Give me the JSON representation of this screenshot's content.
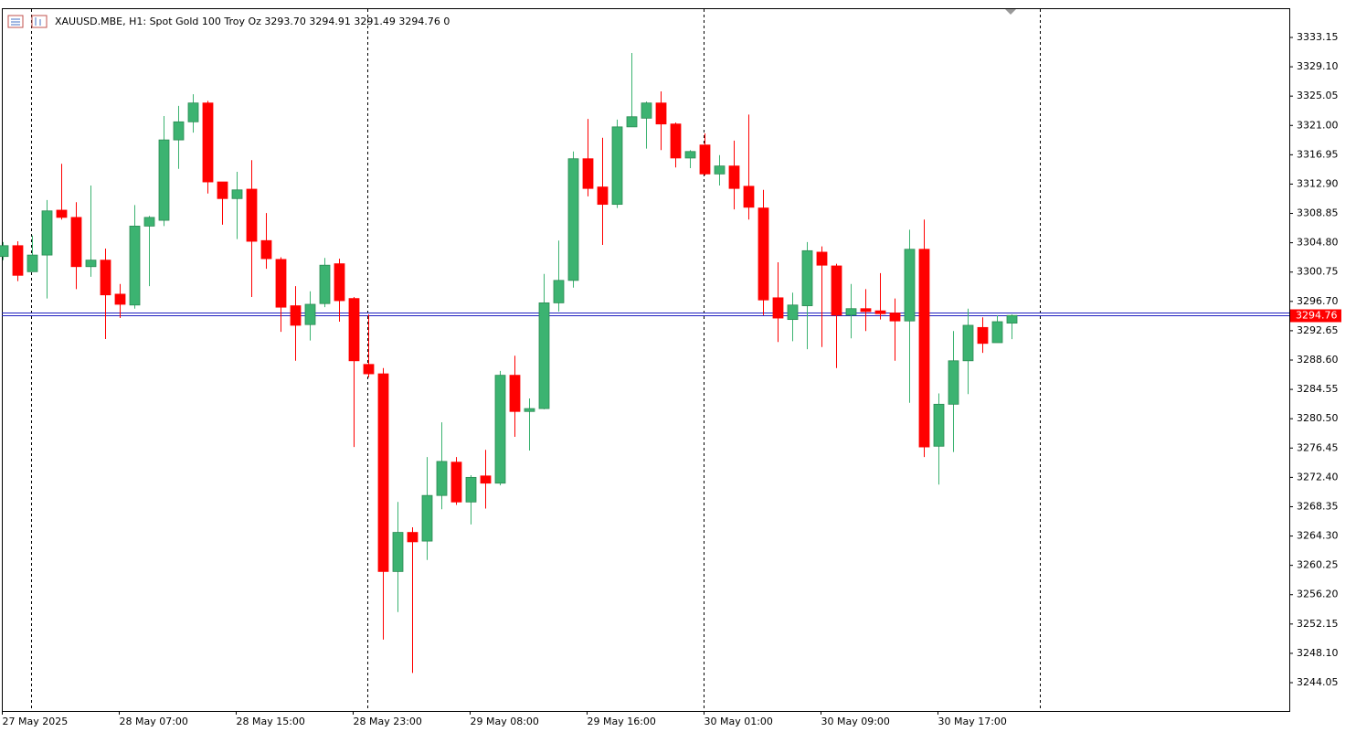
{
  "chart_data": {
    "type": "candlestick",
    "title": "XAUUSD.MBE, H1:  Spot Gold 100 Troy Oz  3293.70 3294.91 3291.49 3294.76  0",
    "categories": [
      "27 May 2025",
      null,
      null,
      null,
      null,
      null,
      null,
      null,
      "28 May 07:00",
      null,
      null,
      null,
      null,
      null,
      null,
      null,
      "28 May 15:00",
      null,
      null,
      null,
      null,
      null,
      null,
      null,
      "28 May 23:00",
      null,
      null,
      null,
      null,
      null,
      null,
      null,
      "29 May 08:00",
      null,
      null,
      null,
      null,
      null,
      null,
      null,
      "29 May 16:00",
      null,
      null,
      null,
      null,
      null,
      null,
      null,
      "30 May 01:00",
      null,
      null,
      null,
      null,
      null,
      null,
      null,
      "30 May 09:00",
      null,
      null,
      null,
      null,
      null,
      null,
      null,
      "30 May 17:00",
      null,
      null,
      null,
      null,
      null
    ],
    "open": [
      3302.9,
      3304.4,
      3300.8,
      3303.1,
      3309.3,
      3308.3,
      3301.5,
      3302.4,
      3297.7,
      3296.2,
      3307.1,
      3307.9,
      3319.0,
      3321.5,
      3324.1,
      3313.2,
      3310.9,
      3312.2,
      3305.1,
      3302.5,
      3296.1,
      3293.5,
      3296.4,
      3301.9,
      3297.1,
      3288.0,
      3286.7,
      3259.4,
      3264.8,
      3263.6,
      3269.9,
      3274.5,
      3269.0,
      3272.6,
      3271.6,
      3286.5,
      3281.5,
      3281.9,
      3296.5,
      3299.6,
      3316.4,
      3312.5,
      3310.1,
      3320.8,
      3322.0,
      3324.1,
      3321.2,
      3316.5,
      3318.3,
      3314.3,
      3315.4,
      3312.6,
      3309.6,
      3297.2,
      3294.2,
      3296.1,
      3303.5,
      3301.6,
      3294.8,
      3295.7,
      3295.4,
      3295.1,
      3294.0,
      3303.9,
      3276.7,
      3282.5,
      3288.5,
      3293.1,
      3291.0,
      3293.7
    ],
    "high": [
      3304.9,
      3305.0,
      3305.8,
      3310.7,
      3315.7,
      3310.4,
      3312.7,
      3304.0,
      3299.1,
      3310.0,
      3308.5,
      3322.3,
      3323.7,
      3325.3,
      3324.4,
      3313.2,
      3314.6,
      3316.2,
      3308.9,
      3302.8,
      3298.8,
      3298.1,
      3302.7,
      3302.6,
      3297.3,
      3294.9,
      3287.5,
      3269.0,
      3265.5,
      3275.2,
      3280.0,
      3275.2,
      3272.7,
      3276.2,
      3287.1,
      3289.2,
      3283.3,
      3300.5,
      3305.1,
      3317.4,
      3321.9,
      3319.3,
      3321.8,
      3331.0,
      3324.3,
      3325.7,
      3321.4,
      3317.6,
      3319.9,
      3316.9,
      3318.9,
      3322.5,
      3312.1,
      3302.1,
      3297.9,
      3304.9,
      3304.3,
      3301.9,
      3299.1,
      3298.4,
      3300.6,
      3297.1,
      3306.6,
      3308.0,
      3284.0,
      3292.6,
      3295.7,
      3294.5,
      3294.8,
      3294.91
    ],
    "low": [
      3302.4,
      3299.5,
      3300.8,
      3297.1,
      3308.0,
      3298.4,
      3300.1,
      3291.5,
      3294.4,
      3295.7,
      3298.8,
      3307.1,
      3315.0,
      3320.0,
      3311.6,
      3307.3,
      3305.3,
      3297.3,
      3301.2,
      3292.5,
      3288.5,
      3291.3,
      3295.9,
      3293.9,
      3276.6,
      3286.2,
      3250.0,
      3253.8,
      3245.4,
      3261.0,
      3268.0,
      3268.6,
      3265.9,
      3268.1,
      3271.3,
      3278.0,
      3276.1,
      3281.8,
      3295.3,
      3298.6,
      3311.2,
      3304.5,
      3309.6,
      3320.8,
      3317.8,
      3317.6,
      3315.2,
      3315.1,
      3314.1,
      3312.7,
      3309.4,
      3308.0,
      3294.8,
      3291.1,
      3291.2,
      3290.1,
      3290.4,
      3287.5,
      3291.6,
      3292.6,
      3294.2,
      3288.5,
      3282.7,
      3275.2,
      3271.4,
      3275.9,
      3283.9,
      3289.6,
      3291.0,
      3291.49
    ],
    "close": [
      3304.4,
      3300.3,
      3303.1,
      3309.2,
      3308.3,
      3301.5,
      3302.4,
      3297.6,
      3296.3,
      3307.1,
      3308.3,
      3319.0,
      3321.5,
      3324.1,
      3313.2,
      3310.9,
      3312.1,
      3305.0,
      3302.6,
      3295.9,
      3293.4,
      3296.3,
      3301.7,
      3296.8,
      3288.5,
      3286.7,
      3259.4,
      3264.8,
      3263.5,
      3269.9,
      3274.6,
      3269.0,
      3272.4,
      3271.6,
      3286.5,
      3281.5,
      3281.9,
      3296.5,
      3299.6,
      3316.4,
      3312.3,
      3310.1,
      3320.8,
      3322.2,
      3324.1,
      3321.2,
      3316.5,
      3317.4,
      3314.3,
      3315.4,
      3312.3,
      3309.7,
      3296.9,
      3294.4,
      3296.2,
      3303.7,
      3301.7,
      3294.8,
      3295.7,
      3295.3,
      3295.0,
      3294.0,
      3303.9,
      3276.6,
      3282.5,
      3288.5,
      3293.4,
      3290.9,
      3293.9,
      3294.76
    ],
    "up_color": "#3cb371",
    "down_color": "#ff0000",
    "bid": 3294.76,
    "ask": 3295.15,
    "ylim": [
      3240.14,
      3337.06
    ],
    "yticks": [
      3244.05,
      {
        "value": 3248.1,
        "label": "3248.10"
      },
      3252.15,
      {
        "value": 3256.2,
        "label": "3256.20"
      },
      3260.25,
      {
        "value": 3264.3,
        "label": "3264.30"
      },
      3268.35,
      {
        "value": 3272.4,
        "label": "3272.40"
      },
      3276.45,
      {
        "value": 3280.5,
        "label": "3280.50"
      },
      3284.55,
      {
        "value": 3288.6,
        "label": "3288.60"
      },
      3292.65,
      {
        "value": 3296.7,
        "label": "3296.70"
      },
      3300.75,
      {
        "value": 3304.8,
        "label": "3304.80"
      },
      3308.85,
      {
        "value": 3312.9,
        "label": "3312.90"
      },
      3316.95,
      {
        "value": 3321.0,
        "label": "3321.00"
      },
      3325.05,
      {
        "value": 3329.1,
        "label": "3329.10"
      },
      3333.15
    ]
  }
}
